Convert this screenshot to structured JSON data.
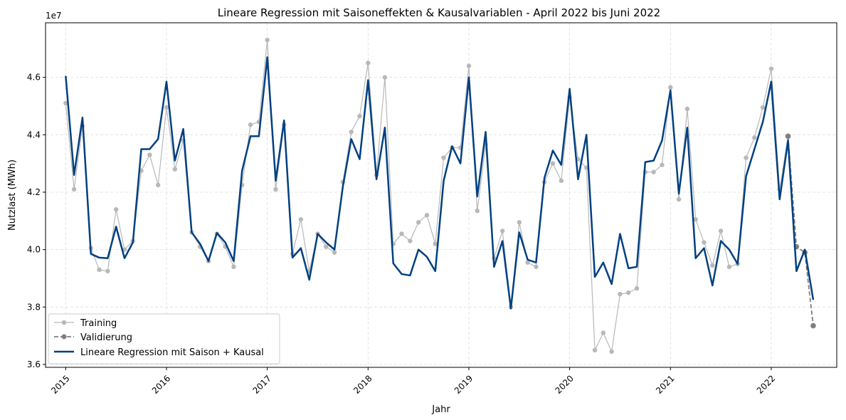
{
  "chart_data": {
    "type": "line",
    "title": "Lineare Regression mit Saisoneffekten & Kausalvariablen - April 2022 bis Juni 2022",
    "xlabel": "Jahr",
    "ylabel": "Nutzlast (MWh)",
    "y_offset_text": "1e7",
    "x_range": [
      2014.8,
      2022.65
    ],
    "ylim": [
      35900000,
      47900000
    ],
    "x_ticks": [
      2015,
      2016,
      2017,
      2018,
      2019,
      2020,
      2021,
      2022
    ],
    "x_tick_labels": [
      "2015",
      "2016",
      "2017",
      "2018",
      "2019",
      "2020",
      "2021",
      "2022"
    ],
    "y_ticks": [
      36000000,
      38000000,
      40000000,
      42000000,
      44000000,
      46000000
    ],
    "y_tick_labels": [
      "3.6",
      "3.8",
      "4.0",
      "4.2",
      "4.4",
      "4.6"
    ],
    "grid": true,
    "legend_position": "lower-left",
    "series": [
      {
        "name": "Training",
        "color": "#b8b8b8",
        "style": "solid-marker",
        "start": [
          2015,
          1
        ],
        "values": [
          45100000,
          42100000,
          44300000,
          40050000,
          39300000,
          39250000,
          41400000,
          40000000,
          40300000,
          42750000,
          43300000,
          42250000,
          44950000,
          42800000,
          43800000,
          40600000,
          40100000,
          39600000,
          40550000,
          40100000,
          39400000,
          42250000,
          44350000,
          44450000,
          47300000,
          42100000,
          44350000,
          39850000,
          41050000,
          39250000,
          40550000,
          40100000,
          39900000,
          42350000,
          44100000,
          44650000,
          46500000,
          42600000,
          46000000,
          40200000,
          40550000,
          40300000,
          40950000,
          41200000,
          40200000,
          43200000,
          43550000,
          43550000,
          46400000,
          41350000,
          43650000,
          39700000,
          40650000,
          38000000,
          40950000,
          39550000,
          39400000,
          42350000,
          43000000,
          42400000,
          45300000,
          43150000,
          42850000,
          36500000,
          37100000,
          36450000,
          38450000,
          38500000,
          38650000,
          42700000,
          42700000,
          42950000,
          45650000,
          41750000,
          44900000,
          41050000,
          40250000,
          39450000,
          40650000,
          39400000,
          39500000,
          43200000,
          43900000,
          44950000,
          46300000,
          42100000,
          43950000
        ]
      },
      {
        "name": "Validierung",
        "color": "#808080",
        "style": "dashed-marker",
        "start": [
          2022,
          3
        ],
        "values": [
          43950000,
          40100000,
          39900000,
          37350000
        ]
      },
      {
        "name": "Lineare Regression mit Saison + Kausal",
        "color": "#004080",
        "style": "solid",
        "start": [
          2015,
          1
        ],
        "values": [
          46050000,
          42600000,
          44600000,
          39850000,
          39720000,
          39700000,
          40800000,
          39700000,
          40250000,
          43500000,
          43500000,
          43850000,
          45850000,
          43100000,
          44200000,
          40600000,
          40200000,
          39600000,
          40580000,
          40250000,
          39600000,
          42750000,
          43950000,
          43950000,
          46700000,
          42400000,
          44500000,
          39720000,
          40050000,
          38950000,
          40550000,
          40250000,
          40000000,
          42200000,
          43850000,
          43150000,
          45900000,
          42450000,
          44250000,
          39520000,
          39150000,
          39100000,
          40000000,
          39750000,
          39250000,
          42400000,
          43600000,
          43000000,
          46000000,
          41850000,
          44100000,
          39400000,
          40300000,
          37950000,
          40600000,
          39650000,
          39550000,
          42500000,
          43450000,
          42950000,
          45600000,
          42450000,
          44000000,
          39050000,
          39550000,
          38800000,
          40550000,
          39350000,
          39400000,
          43050000,
          43100000,
          43800000,
          45550000,
          41950000,
          44250000,
          39700000,
          40050000,
          38750000,
          40300000,
          40000000,
          39500000,
          42550000,
          43500000,
          44450000,
          45850000,
          41750000,
          43800000,
          39250000,
          40000000,
          38250000
        ]
      }
    ]
  }
}
